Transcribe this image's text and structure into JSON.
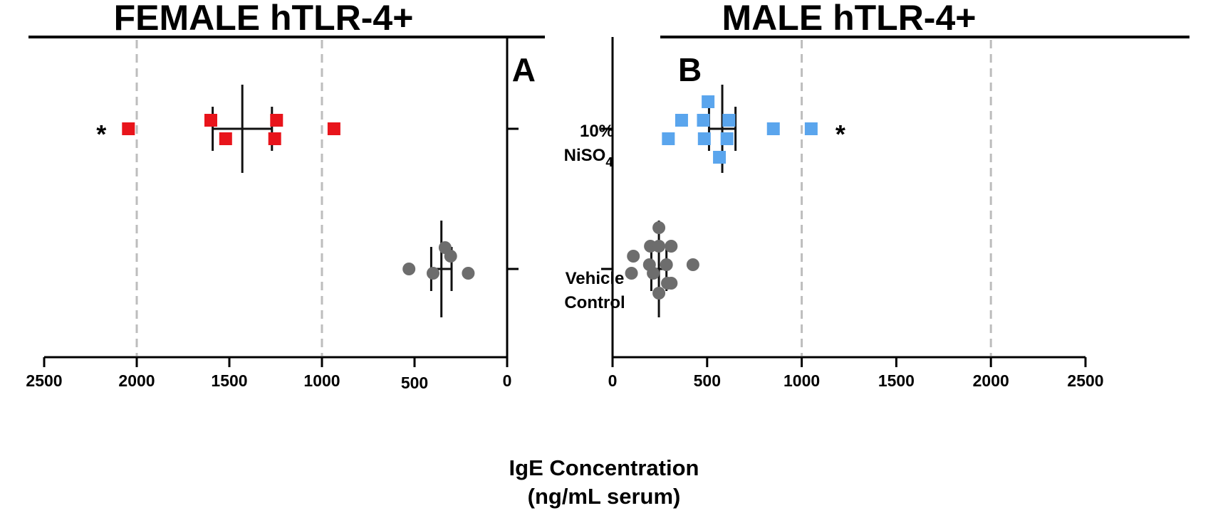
{
  "chart_data": [
    {
      "panel": "A",
      "title": "FEMALE hTLR-4+",
      "type": "scatter",
      "orientation": "horizontal",
      "x_reversed": true,
      "xlim": [
        0,
        2500
      ],
      "xticks": [
        2500,
        2000,
        1500,
        1000,
        500,
        0
      ],
      "ref_lines": [
        2000,
        1000
      ],
      "groups": [
        {
          "category": "10% NiSO4",
          "marker": "square",
          "color": "#e8141b",
          "points": [
            {
              "x": 2045,
              "y": 0
            },
            {
              "x": 1600,
              "y": 0.12
            },
            {
              "x": 1520,
              "y": -0.14
            },
            {
              "x": 1245,
              "y": 0.12
            },
            {
              "x": 1255,
              "y": -0.14
            },
            {
              "x": 935,
              "y": 0
            }
          ],
          "mean": 1430,
          "sem": [
            1270,
            1590
          ],
          "annotation": "*"
        },
        {
          "category": "Vehicle Control",
          "marker": "circle",
          "color": "#6d6d6d",
          "points": [
            {
              "x": 530,
              "y": 0
            },
            {
              "x": 335,
              "y": 0.3
            },
            {
              "x": 305,
              "y": 0.18
            },
            {
              "x": 400,
              "y": -0.06
            },
            {
              "x": 210,
              "y": -0.06
            }
          ],
          "mean": 355,
          "sem": [
            300,
            410
          ]
        }
      ]
    },
    {
      "panel": "B",
      "title": "MALE hTLR-4+",
      "type": "scatter",
      "orientation": "horizontal",
      "x_reversed": false,
      "xlim": [
        0,
        2500
      ],
      "xticks": [
        0,
        500,
        1000,
        1500,
        2000,
        2500
      ],
      "ref_lines": [
        1000,
        2000
      ],
      "groups": [
        {
          "category": "10% NiSO4",
          "marker": "square",
          "color": "#5aa5ed",
          "points": [
            {
              "x": 505,
              "y": 0.38
            },
            {
              "x": 365,
              "y": 0.12
            },
            {
              "x": 480,
              "y": 0.12
            },
            {
              "x": 615,
              "y": 0.12
            },
            {
              "x": 295,
              "y": -0.14
            },
            {
              "x": 485,
              "y": -0.14
            },
            {
              "x": 605,
              "y": -0.14
            },
            {
              "x": 565,
              "y": -0.4
            },
            {
              "x": 850,
              "y": 0
            },
            {
              "x": 1050,
              "y": 0
            }
          ],
          "mean": 580,
          "sem": [
            510,
            650
          ],
          "annotation": "*"
        },
        {
          "category": "Vehicle Control",
          "marker": "circle",
          "color": "#6d6d6d",
          "points": [
            {
              "x": 245,
              "y": 0.58
            },
            {
              "x": 200,
              "y": 0.32
            },
            {
              "x": 245,
              "y": 0.32
            },
            {
              "x": 310,
              "y": 0.32
            },
            {
              "x": 110,
              "y": 0.18
            },
            {
              "x": 195,
              "y": 0.06
            },
            {
              "x": 285,
              "y": 0.06
            },
            {
              "x": 425,
              "y": 0.06
            },
            {
              "x": 100,
              "y": -0.06
            },
            {
              "x": 215,
              "y": -0.06
            },
            {
              "x": 290,
              "y": -0.2
            },
            {
              "x": 310,
              "y": -0.2
            },
            {
              "x": 245,
              "y": -0.34
            }
          ],
          "mean": 245,
          "sem": [
            205,
            285
          ]
        }
      ]
    }
  ],
  "categories": {
    "nickel": {
      "line1": "10%",
      "line2": "NiSO",
      "subscript": "4"
    },
    "vehicle": {
      "line1": "Vehicle",
      "line2": "Control"
    }
  },
  "xlabel": {
    "line1": "IgE Concentration",
    "line2": "(ng/mL serum)"
  }
}
